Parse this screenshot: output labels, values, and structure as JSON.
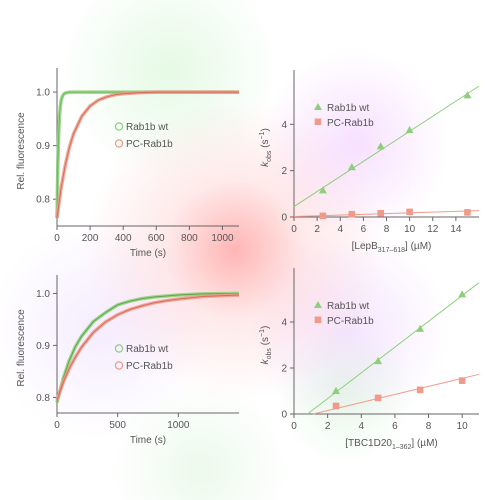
{
  "chart_data": [
    {
      "type": "line",
      "panel": "top-left",
      "xlabel": "Time (s)",
      "ylabel": "Rel. fluorescence",
      "xlim": [
        0,
        1100
      ],
      "ylim": [
        0.75,
        1.03
      ],
      "xticks": [
        0,
        200,
        400,
        600,
        800,
        1000
      ],
      "yticks": [
        0.8,
        0.9,
        1.0
      ],
      "ytick_labels": [
        "0.8",
        "0.9",
        "1.0"
      ],
      "grid": false,
      "legend": {
        "placement": "center-right",
        "entries": [
          "Rab1b wt",
          "PC-Rab1b"
        ]
      },
      "series": [
        {
          "name": "Rab1b wt",
          "color": "#8fcf7c",
          "fit_color": "#6dbb5a",
          "x": [
            0,
            5,
            10,
            15,
            20,
            25,
            30,
            40,
            50,
            60,
            80,
            100,
            120,
            150,
            200,
            300,
            500,
            800,
            1100
          ],
          "y": [
            0.765,
            0.86,
            0.922,
            0.955,
            0.973,
            0.984,
            0.99,
            0.996,
            0.998,
            0.999,
            1.0,
            1.0,
            1.0,
            1.0,
            1.0,
            1.0,
            1.0,
            1.0,
            1.0
          ]
        },
        {
          "name": "PC-Rab1b",
          "color": "#f09a8a",
          "fit_color": "#d86b5a",
          "x": [
            0,
            25,
            50,
            75,
            100,
            150,
            200,
            250,
            300,
            350,
            400,
            500,
            600,
            700,
            800,
            900,
            1000,
            1100
          ],
          "y": [
            0.765,
            0.821,
            0.864,
            0.897,
            0.922,
            0.955,
            0.974,
            0.985,
            0.991,
            0.995,
            0.997,
            0.999,
            1.0,
            1.0,
            1.0,
            1.0,
            1.0,
            1.0
          ]
        }
      ]
    },
    {
      "type": "scatter",
      "panel": "top-right",
      "xlabel_main": "[LepB",
      "xlabel_sub": "317–618",
      "xlabel_tail": "] (µM)",
      "ylabel_main": "k",
      "ylabel_sub": "obs",
      "ylabel_tail": " (s",
      "ylabel_sup": "−1",
      "ylabel_end": ")",
      "xlim": [
        0,
        16
      ],
      "ylim": [
        0,
        6
      ],
      "xticks": [
        0,
        2,
        4,
        6,
        8,
        10,
        12,
        14
      ],
      "yticks": [
        0,
        2,
        4
      ],
      "grid": false,
      "legend": {
        "placement": "top-left",
        "entries": [
          "Rab1b wt",
          "PC-Rab1b"
        ]
      },
      "series": [
        {
          "name": "Rab1b wt",
          "marker": "triangle",
          "color": "#8fcf7c",
          "x": [
            2.5,
            5,
            7.5,
            10,
            15
          ],
          "y": [
            1.15,
            2.15,
            3.05,
            3.75,
            5.25
          ],
          "fit": {
            "slope": 0.325,
            "intercept": 0.45
          }
        },
        {
          "name": "PC-Rab1b",
          "marker": "square",
          "color": "#f09a8a",
          "x": [
            2.5,
            5,
            7.5,
            10,
            15
          ],
          "y": [
            0.05,
            0.12,
            0.16,
            0.22,
            0.2
          ],
          "fit": {
            "slope": 0.016,
            "intercept": 0.02
          }
        }
      ]
    },
    {
      "type": "line",
      "panel": "bottom-left",
      "xlabel": "Time (s)",
      "ylabel": "Rel. fluorescence",
      "xlim": [
        0,
        1500
      ],
      "ylim": [
        0.77,
        1.02
      ],
      "xticks": [
        0,
        500,
        1000
      ],
      "yticks": [
        0.8,
        0.9,
        1.0
      ],
      "ytick_labels": [
        "0.8",
        "0.9",
        "1.0"
      ],
      "grid": false,
      "legend": {
        "placement": "center-right",
        "entries": [
          "Rab1b wt",
          "PC-Rab1b"
        ]
      },
      "series": [
        {
          "name": "Rab1b wt",
          "color": "#8fcf7c",
          "fit_color": "#5aa84a",
          "x": [
            0,
            50,
            100,
            150,
            200,
            300,
            400,
            500,
            600,
            700,
            800,
            900,
            1000,
            1200,
            1500
          ],
          "y": [
            0.79,
            0.836,
            0.87,
            0.897,
            0.917,
            0.946,
            0.963,
            0.978,
            0.985,
            0.99,
            0.993,
            0.995,
            0.997,
            0.999,
            1.0
          ]
        },
        {
          "name": "PC-Rab1b",
          "color": "#f09a8a",
          "fit_color": "#d86b5a",
          "x": [
            0,
            50,
            100,
            150,
            200,
            300,
            400,
            500,
            600,
            700,
            800,
            900,
            1000,
            1200,
            1500
          ],
          "y": [
            0.795,
            0.828,
            0.855,
            0.877,
            0.896,
            0.925,
            0.945,
            0.959,
            0.969,
            0.976,
            0.982,
            0.986,
            0.989,
            0.994,
            0.997
          ]
        }
      ]
    },
    {
      "type": "scatter",
      "panel": "bottom-right",
      "xlabel_main": "[TBC1D20",
      "xlabel_sub": "1–362",
      "xlabel_tail": "] (µM)",
      "ylabel_main": "k",
      "ylabel_sub": "obs",
      "ylabel_tail": " (s",
      "ylabel_sup": "−1",
      "ylabel_end": ")",
      "xlim": [
        0,
        11
      ],
      "ylim": [
        0,
        6
      ],
      "xticks": [
        0,
        2,
        4,
        6,
        8,
        10
      ],
      "yticks": [
        0,
        2,
        4
      ],
      "grid": false,
      "legend": {
        "placement": "top-left",
        "entries": [
          "Rab1b wt",
          "PC-Rab1b"
        ]
      },
      "series": [
        {
          "name": "Rab1b wt",
          "marker": "triangle",
          "color": "#8fcf7c",
          "x": [
            2.5,
            5,
            7.5,
            10
          ],
          "y": [
            1.0,
            2.3,
            3.7,
            5.2
          ],
          "fit": {
            "slope": 0.56,
            "intercept": -0.45
          }
        },
        {
          "name": "PC-Rab1b",
          "marker": "square",
          "color": "#f09a8a",
          "x": [
            2.5,
            5,
            7.5,
            10
          ],
          "y": [
            0.35,
            0.7,
            1.05,
            1.45
          ],
          "fit": {
            "slope": 0.175,
            "intercept": -0.2
          }
        }
      ]
    }
  ]
}
